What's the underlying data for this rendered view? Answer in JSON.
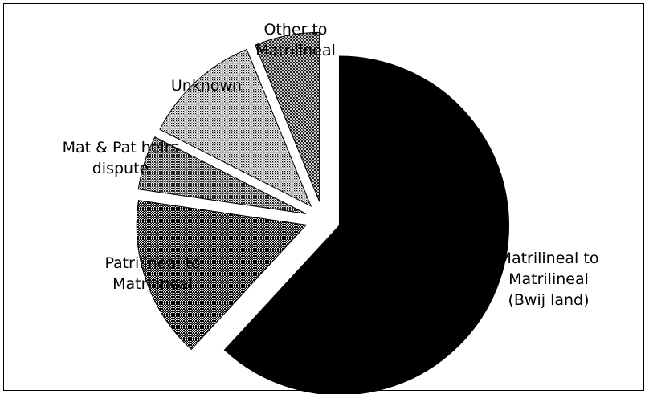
{
  "chart_data": {
    "type": "pie",
    "exploded": true,
    "title": "",
    "slices": [
      {
        "label": [
          "Matrilineal to",
          "Matrilineal",
          "(Bwij land)"
        ],
        "value": 60,
        "pattern": "solid-black"
      },
      {
        "label": [
          "Patrilineal to",
          "Matrilineal"
        ],
        "value": 15,
        "pattern": "dense-dots"
      },
      {
        "label": [
          "Mat & Pat heirs",
          "dispute"
        ],
        "value": 5,
        "pattern": "dense-dots"
      },
      {
        "label": [
          "Unknown"
        ],
        "value": 11,
        "pattern": "light-dots"
      },
      {
        "label": [
          "Other to",
          "Matrilineal"
        ],
        "value": 6,
        "pattern": "crosshatch"
      }
    ]
  }
}
